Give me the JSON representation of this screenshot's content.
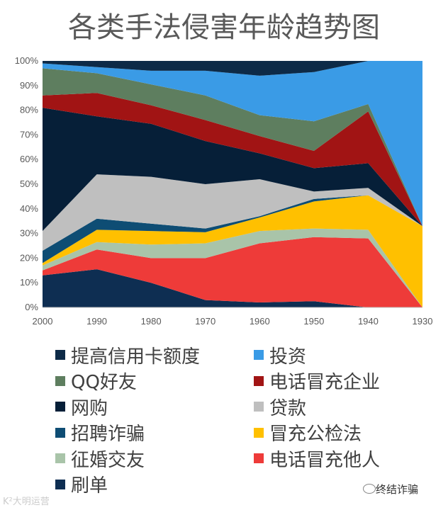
{
  "chart_data": {
    "type": "area",
    "stacked": true,
    "percent": true,
    "title": "各类手法侵害年龄趋势图",
    "xlabel": "",
    "ylabel": "",
    "x": [
      "2000",
      "1990",
      "1980",
      "1970",
      "1960",
      "1950",
      "1940",
      "1930"
    ],
    "ylim": [
      0,
      100
    ],
    "yticks": [
      "0%",
      "10%",
      "20%",
      "30%",
      "40%",
      "50%",
      "60%",
      "70%",
      "80%",
      "90%",
      "100%"
    ],
    "legend_position": "bottom",
    "series": [
      {
        "name": "刷单",
        "color": "#0e2e52",
        "values": [
          13,
          15.5,
          10,
          3,
          2,
          2.5,
          0,
          0
        ]
      },
      {
        "name": "电话冒充他人",
        "color": "#ee3b39",
        "values": [
          2,
          8,
          10,
          17,
          24,
          26,
          28,
          0
        ]
      },
      {
        "name": "征婚交友",
        "color": "#a9c4a9",
        "values": [
          2,
          3,
          5.5,
          6,
          5,
          3.5,
          3.5,
          0
        ]
      },
      {
        "name": "冒充公检法",
        "color": "#ffc000",
        "values": [
          1,
          5,
          5.5,
          4.5,
          5.5,
          11,
          14,
          33
        ]
      },
      {
        "name": "招聘诈骗",
        "color": "#0e4d74",
        "values": [
          5,
          4.5,
          3,
          1.5,
          0.5,
          1,
          0,
          0
        ]
      },
      {
        "name": "贷款",
        "color": "#bfbfbf",
        "values": [
          8,
          18,
          19,
          18,
          15,
          3,
          3,
          0
        ]
      },
      {
        "name": "网购",
        "color": "#061f38",
        "values": [
          50,
          23.5,
          21.5,
          17.5,
          10.5,
          9.5,
          10,
          0
        ]
      },
      {
        "name": "电话冒充企业",
        "color": "#a11414",
        "values": [
          5,
          9.5,
          7.5,
          8.5,
          7,
          7,
          21,
          0
        ]
      },
      {
        "name": "QQ好友",
        "color": "#5e7e5f",
        "values": [
          11,
          8,
          8.5,
          10,
          8.5,
          12,
          3,
          0
        ]
      },
      {
        "name": "投资",
        "color": "#3a9be6",
        "values": [
          2,
          2.5,
          5.5,
          10,
          16,
          20,
          17.5,
          67
        ]
      },
      {
        "name": "提高信用卡额度",
        "color": "#0d2a47",
        "values": [
          1,
          2.5,
          4,
          4,
          6,
          4.5,
          0,
          0
        ]
      }
    ]
  },
  "legend_items": [
    {
      "name": "提高信用卡额度",
      "color": "#0d2a47"
    },
    {
      "name": "投资",
      "color": "#3a9be6"
    },
    {
      "name": "QQ好友",
      "color": "#5e7e5f"
    },
    {
      "name": "电话冒充企业",
      "color": "#a11414"
    },
    {
      "name": "网购",
      "color": "#061f38"
    },
    {
      "name": "贷款",
      "color": "#bfbfbf"
    },
    {
      "name": "招聘诈骗",
      "color": "#0e4d74"
    },
    {
      "name": "冒充公检法",
      "color": "#ffc000"
    },
    {
      "name": "征婚交友",
      "color": "#a9c4a9"
    },
    {
      "name": "电话冒充他人",
      "color": "#ee3b39"
    },
    {
      "name": "刷单",
      "color": "#0e2e52"
    }
  ],
  "watermark_left": "K²大明运营",
  "watermark_right": "终结诈骗"
}
